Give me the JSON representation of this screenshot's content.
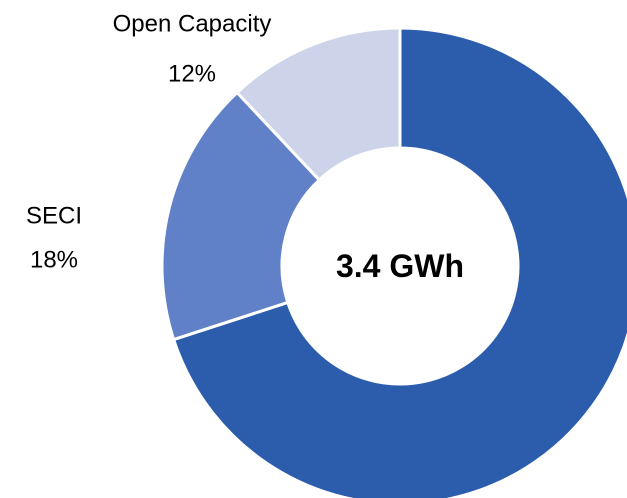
{
  "chart_data": {
    "type": "pie",
    "style": "donut",
    "center_label": "3.4 GWh",
    "slices": [
      {
        "name": "",
        "value": 70,
        "value_label": "",
        "color": "#2B5DAC"
      },
      {
        "name": "SECI",
        "value": 18,
        "value_label": "18%",
        "color": "#6081C8"
      },
      {
        "name": "Open Capacity",
        "value": 12,
        "value_label": "12%",
        "color": "#CDD4E9"
      }
    ],
    "start_angle_deg": 0,
    "direction": "clockwise",
    "legend": "none"
  }
}
